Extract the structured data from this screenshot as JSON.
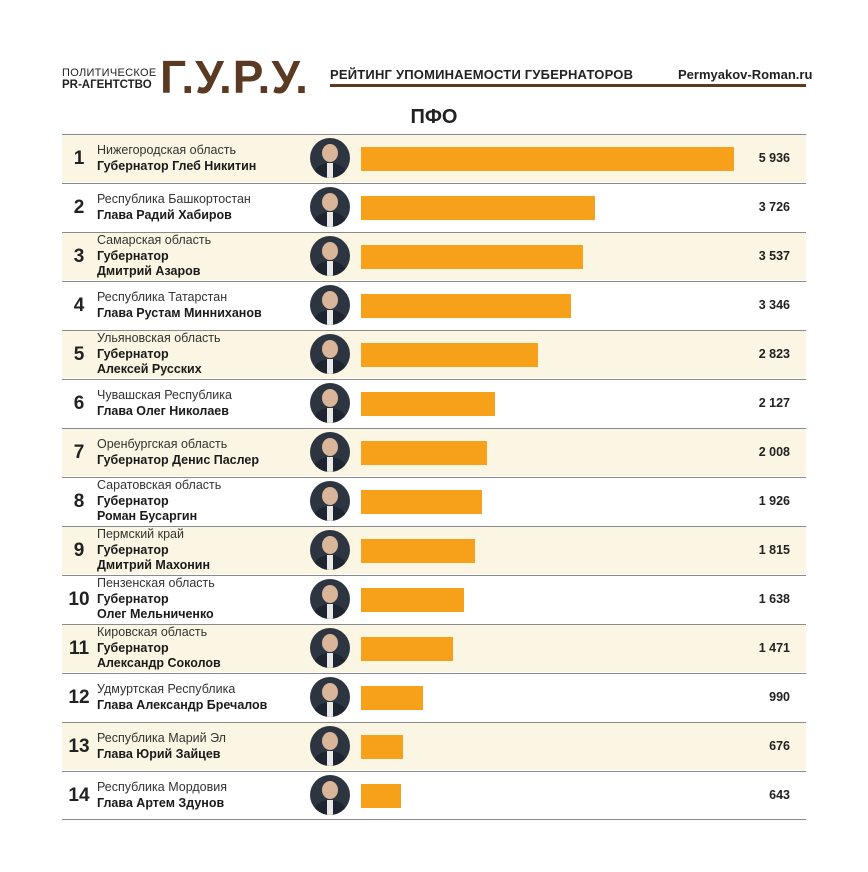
{
  "header": {
    "agency_line1": "ПОЛИТИЧЕСКОЕ",
    "agency_line2": "PR-АГЕНТСТВО",
    "logo": "Г.У.Р.У.",
    "subtitle": "РЕЙТИНГ УПОМИНАЕМОСТИ ГУБЕРНАТОРОВ",
    "site": "Permyakov-Roman.ru"
  },
  "colors": {
    "bar": "#f7a11a",
    "logo": "#5a3a22",
    "row_alt": "#fbf6e3"
  },
  "chart_data": {
    "type": "bar",
    "orientation": "horizontal",
    "title": "ПФО",
    "xlim": [
      0,
      5936
    ],
    "rows": [
      {
        "rank": "1",
        "region": "Нижегородская область",
        "governor_lines": [
          "Губернатор Глеб Никитин"
        ],
        "value": 5936,
        "value_label": "5 936"
      },
      {
        "rank": "2",
        "region": "Республика Башкортостан",
        "governor_lines": [
          "Глава Радий Хабиров"
        ],
        "value": 3726,
        "value_label": "3 726"
      },
      {
        "rank": "3",
        "region": "Самарская область",
        "governor_lines": [
          "Губернатор",
          "Дмитрий Азаров"
        ],
        "value": 3537,
        "value_label": "3 537"
      },
      {
        "rank": "4",
        "region": "Республика Татарстан",
        "governor_lines": [
          "Глава Рустам Минниханов"
        ],
        "value": 3346,
        "value_label": "3 346"
      },
      {
        "rank": "5",
        "region": "Ульяновская область",
        "governor_lines": [
          "Губернатор",
          "Алексей Русских"
        ],
        "value": 2823,
        "value_label": "2 823"
      },
      {
        "rank": "6",
        "region": "Чувашская Республика",
        "governor_lines": [
          "Глава Олег Николаев"
        ],
        "value": 2127,
        "value_label": "2 127"
      },
      {
        "rank": "7",
        "region": "Оренбургская область",
        "governor_lines": [
          "Губернатор Денис Паслер"
        ],
        "value": 2008,
        "value_label": "2 008"
      },
      {
        "rank": "8",
        "region": "Саратовская область",
        "governor_lines": [
          "Губернатор",
          "Роман Бусаргин"
        ],
        "value": 1926,
        "value_label": "1 926"
      },
      {
        "rank": "9",
        "region": "Пермский край",
        "governor_lines": [
          "Губернатор",
          "Дмитрий Махонин"
        ],
        "value": 1815,
        "value_label": "1 815"
      },
      {
        "rank": "10",
        "region": "Пензенская область",
        "governor_lines": [
          "Губернатор",
          "Олег Мельниченко"
        ],
        "value": 1638,
        "value_label": "1 638"
      },
      {
        "rank": "11",
        "region": "Кировская область",
        "governor_lines": [
          "Губернатор",
          "Александр Соколов"
        ],
        "value": 1471,
        "value_label": "1 471"
      },
      {
        "rank": "12",
        "region": "Удмуртская Республика",
        "governor_lines": [
          "Глава Александр Бречалов"
        ],
        "value": 990,
        "value_label": "990"
      },
      {
        "rank": "13",
        "region": "Республика Марий Эл",
        "governor_lines": [
          "Глава Юрий Зайцев"
        ],
        "value": 676,
        "value_label": "676"
      },
      {
        "rank": "14",
        "region": "Республика Мордовия",
        "governor_lines": [
          "Глава Артем Здунов"
        ],
        "value": 643,
        "value_label": "643"
      }
    ]
  }
}
